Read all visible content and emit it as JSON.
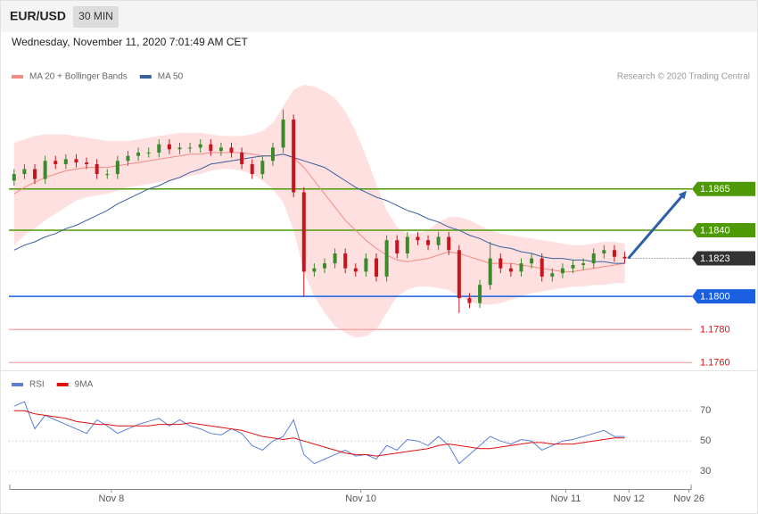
{
  "header": {
    "symbol": "EUR/USD",
    "interval": "30 MIN",
    "timestamp": "Wednesday, November 11, 2020 7:01:49 AM CET"
  },
  "credit": "Research © 2020 Trading Central",
  "chart_data": [
    {
      "type": "candlestick",
      "xlim": [
        -0.5,
        65.5
      ],
      "ylim": [
        1.1758,
        1.1928
      ],
      "up_color": "#3a8a2a",
      "down_color": "#c8141c",
      "open": [
        1.187,
        1.1874,
        1.1877,
        1.1871,
        1.1882,
        1.188,
        1.1883,
        1.1881,
        1.188,
        1.1874,
        1.1874,
        1.1882,
        1.1885,
        1.1887,
        1.1887,
        1.1892,
        1.1889,
        1.189,
        1.189,
        1.1892,
        1.1888,
        1.189,
        1.1887,
        1.188,
        1.1874,
        1.1882,
        1.189,
        1.1907,
        1.1863,
        1.1815,
        1.1817,
        1.182,
        1.1826,
        1.1817,
        1.1815,
        1.1823,
        1.1812,
        1.1834,
        1.1826,
        1.1836,
        1.1834,
        1.1831,
        1.1836,
        1.1828,
        1.1799,
        1.1796,
        1.1807,
        1.1823,
        1.1817,
        1.1815,
        1.182,
        1.1823,
        1.1812,
        1.1814,
        1.1817,
        1.1819,
        1.182,
        1.1826,
        1.1828,
        1.1824
      ],
      "high": [
        1.1877,
        1.188,
        1.188,
        1.1885,
        1.1885,
        1.1886,
        1.1886,
        1.1884,
        1.1883,
        1.1877,
        1.1885,
        1.1888,
        1.189,
        1.189,
        1.1895,
        1.1895,
        1.1893,
        1.1893,
        1.1895,
        1.1895,
        1.1893,
        1.1893,
        1.189,
        1.1883,
        1.1885,
        1.1893,
        1.1913,
        1.191,
        1.1866,
        1.182,
        1.1823,
        1.1829,
        1.1829,
        1.182,
        1.1826,
        1.1826,
        1.1837,
        1.1837,
        1.1839,
        1.1839,
        1.1837,
        1.1839,
        1.1839,
        1.1831,
        1.1802,
        1.181,
        1.1833,
        1.1826,
        1.182,
        1.1823,
        1.1826,
        1.1826,
        1.1817,
        1.182,
        1.1822,
        1.1823,
        1.1829,
        1.1831,
        1.1831,
        1.1827
      ],
      "low": [
        1.1867,
        1.1871,
        1.1868,
        1.1868,
        1.1877,
        1.1877,
        1.1878,
        1.1877,
        1.1871,
        1.1871,
        1.1871,
        1.1879,
        1.1882,
        1.1884,
        1.1884,
        1.1886,
        1.1886,
        1.1887,
        1.1887,
        1.1885,
        1.1885,
        1.1884,
        1.1877,
        1.1871,
        1.1871,
        1.1879,
        1.1887,
        1.186,
        1.18,
        1.1812,
        1.1814,
        1.1817,
        1.1814,
        1.1812,
        1.1812,
        1.1809,
        1.1809,
        1.1823,
        1.1823,
        1.1831,
        1.1828,
        1.1828,
        1.1825,
        1.179,
        1.1793,
        1.1793,
        1.1804,
        1.1814,
        1.1812,
        1.1812,
        1.1817,
        1.1809,
        1.1809,
        1.1811,
        1.1814,
        1.1816,
        1.1817,
        1.1823,
        1.1821,
        1.182
      ],
      "close": [
        1.1874,
        1.1877,
        1.1871,
        1.1882,
        1.188,
        1.1883,
        1.1881,
        1.188,
        1.1874,
        1.1874,
        1.1882,
        1.1885,
        1.1887,
        1.1887,
        1.1892,
        1.1889,
        1.189,
        1.189,
        1.1892,
        1.1888,
        1.189,
        1.1887,
        1.188,
        1.1874,
        1.1882,
        1.189,
        1.1907,
        1.1863,
        1.1815,
        1.1817,
        1.182,
        1.1826,
        1.1817,
        1.1815,
        1.1823,
        1.1812,
        1.1834,
        1.1826,
        1.1836,
        1.1834,
        1.1831,
        1.1836,
        1.1828,
        1.1799,
        1.1796,
        1.1807,
        1.1823,
        1.1817,
        1.1815,
        1.182,
        1.1823,
        1.1812,
        1.1814,
        1.1817,
        1.1819,
        1.182,
        1.1826,
        1.1828,
        1.1824,
        1.1823
      ],
      "series": [
        {
          "name": "MA 20 + Bollinger Bands",
          "color": "#f28b82",
          "band_color": "#ffe0e0",
          "values": [
            1.1862,
            1.1866,
            1.1869,
            1.1872,
            1.1874,
            1.1876,
            1.1877,
            1.1878,
            1.1878,
            1.1878,
            1.1879,
            1.188,
            1.1881,
            1.1882,
            1.1883,
            1.1884,
            1.1885,
            1.1886,
            1.1886,
            1.1887,
            1.1887,
            1.1887,
            1.1887,
            1.1886,
            1.1885,
            1.1885,
            1.1886,
            1.1884,
            1.1878,
            1.187,
            1.1862,
            1.1854,
            1.1846,
            1.184,
            1.1834,
            1.1829,
            1.1825,
            1.1822,
            1.1821,
            1.1822,
            1.1823,
            1.1825,
            1.1827,
            1.1826,
            1.1824,
            1.1822,
            1.182,
            1.182,
            1.182,
            1.1819,
            1.1818,
            1.1817,
            1.1816,
            1.1815,
            1.1815,
            1.1816,
            1.1817,
            1.1818,
            1.1819,
            1.182
          ],
          "upper": [
            1.1893,
            1.1895,
            1.1897,
            1.1898,
            1.1898,
            1.1898,
            1.1897,
            1.1896,
            1.1895,
            1.1894,
            1.1894,
            1.1894,
            1.1895,
            1.1896,
            1.1897,
            1.1898,
            1.1899,
            1.1899,
            1.1899,
            1.1898,
            1.1897,
            1.1897,
            1.1897,
            1.1898,
            1.19,
            1.1905,
            1.1915,
            1.1925,
            1.1928,
            1.1927,
            1.1924,
            1.192,
            1.1912,
            1.19,
            1.1885,
            1.1868,
            1.1852,
            1.1842,
            1.1838,
            1.1838,
            1.184,
            1.1845,
            1.1848,
            1.1848,
            1.1846,
            1.1843,
            1.184,
            1.1838,
            1.1837,
            1.1836,
            1.1835,
            1.1834,
            1.1833,
            1.1832,
            1.1831,
            1.1831,
            1.1832,
            1.1833,
            1.1833,
            1.1832
          ],
          "lower": [
            1.1831,
            1.1837,
            1.1841,
            1.1846,
            1.185,
            1.1854,
            1.1858,
            1.186,
            1.1861,
            1.1862,
            1.1864,
            1.1866,
            1.1867,
            1.1868,
            1.1869,
            1.187,
            1.1871,
            1.1873,
            1.1874,
            1.1876,
            1.1877,
            1.1877,
            1.1876,
            1.1874,
            1.187,
            1.1865,
            1.1857,
            1.184,
            1.1815,
            1.18,
            1.179,
            1.1782,
            1.1778,
            1.1775,
            1.1776,
            1.178,
            1.179,
            1.18,
            1.1804,
            1.1806,
            1.1806,
            1.1805,
            1.1804,
            1.18,
            1.1797,
            1.1795,
            1.1795,
            1.1796,
            1.1798,
            1.18,
            1.1802,
            1.1803,
            1.1804,
            1.1805,
            1.1806,
            1.1806,
            1.1807,
            1.1807,
            1.1808,
            1.1808
          ]
        },
        {
          "name": "MA 50",
          "color": "#3a5f9e",
          "values": [
            1.1828,
            1.1831,
            1.1833,
            1.1836,
            1.1838,
            1.1841,
            1.1843,
            1.1846,
            1.1849,
            1.1852,
            1.1856,
            1.1859,
            1.1862,
            1.1865,
            1.1867,
            1.187,
            1.1872,
            1.1875,
            1.1877,
            1.188,
            1.1881,
            1.1882,
            1.1883,
            1.1884,
            1.1885,
            1.1885,
            1.1886,
            1.1884,
            1.1882,
            1.188,
            1.1878,
            1.1874,
            1.187,
            1.1866,
            1.1863,
            1.186,
            1.1858,
            1.1855,
            1.1852,
            1.185,
            1.1847,
            1.1845,
            1.1842,
            1.184,
            1.1837,
            1.1835,
            1.1832,
            1.183,
            1.1829,
            1.1827,
            1.1826,
            1.1824,
            1.1823,
            1.1823,
            1.1822,
            1.1822,
            1.1821,
            1.1821,
            1.182,
            1.182
          ]
        }
      ],
      "levels": [
        {
          "value": 1.1865,
          "label": "1.1865",
          "color": "#4e9a06",
          "boxed": true
        },
        {
          "value": 1.184,
          "label": "1.1840",
          "color": "#4e9a06",
          "boxed": true
        },
        {
          "value": 1.1823,
          "label": "1.1823",
          "color": "#333333",
          "boxed": true,
          "dotted": true
        },
        {
          "value": 1.18,
          "label": "1.1800",
          "color": "#1a5fe0",
          "boxed": true
        },
        {
          "value": 1.178,
          "label": "1.1780",
          "color": "#e01010",
          "boxed": false
        },
        {
          "value": 1.176,
          "label": "1.1760",
          "color": "#e01010",
          "boxed": false
        }
      ],
      "projection_color": "#2d5fa8"
    },
    {
      "type": "line",
      "xlim": [
        -0.5,
        65.5
      ],
      "ylim": [
        20,
        82
      ],
      "yticks": [
        70,
        50,
        30
      ],
      "grid": true,
      "xticks": [
        {
          "value": 9.4,
          "label": "Nov 8"
        },
        {
          "value": 33.5,
          "label": "Nov 10"
        },
        {
          "value": 53.3,
          "label": "Nov 11"
        },
        {
          "value": 59.4,
          "label": "Nov 12"
        },
        {
          "value": 65.2,
          "label": "Nov 26"
        }
      ],
      "series": [
        {
          "name": "RSI",
          "color": "#5b7fd6",
          "values": [
            73,
            76,
            58,
            67,
            64,
            61,
            58,
            55,
            64,
            60,
            55,
            58,
            61,
            63,
            65,
            60,
            64,
            60,
            58,
            55,
            54,
            58,
            55,
            47,
            44,
            50,
            53,
            64,
            41,
            35,
            38,
            41,
            44,
            40,
            41,
            38,
            47,
            44,
            51,
            50,
            47,
            53,
            47,
            35,
            41,
            47,
            53,
            50,
            48,
            51,
            50,
            44,
            47,
            50,
            51,
            53,
            55,
            57,
            53,
            53
          ]
        },
        {
          "name": "9MA",
          "color": "#e01010",
          "values": [
            70,
            70,
            68,
            67,
            66,
            65,
            63,
            62,
            61,
            61,
            60,
            60,
            60,
            60,
            61,
            61,
            61,
            62,
            61,
            60,
            59,
            58,
            57,
            55,
            53,
            52,
            51,
            52,
            50,
            48,
            46,
            44,
            42,
            41,
            41,
            40,
            41,
            42,
            43,
            44,
            45,
            47,
            48,
            47,
            46,
            45,
            45,
            46,
            47,
            48,
            49,
            49,
            48,
            48,
            48,
            49,
            50,
            51,
            52,
            52
          ]
        }
      ]
    }
  ]
}
